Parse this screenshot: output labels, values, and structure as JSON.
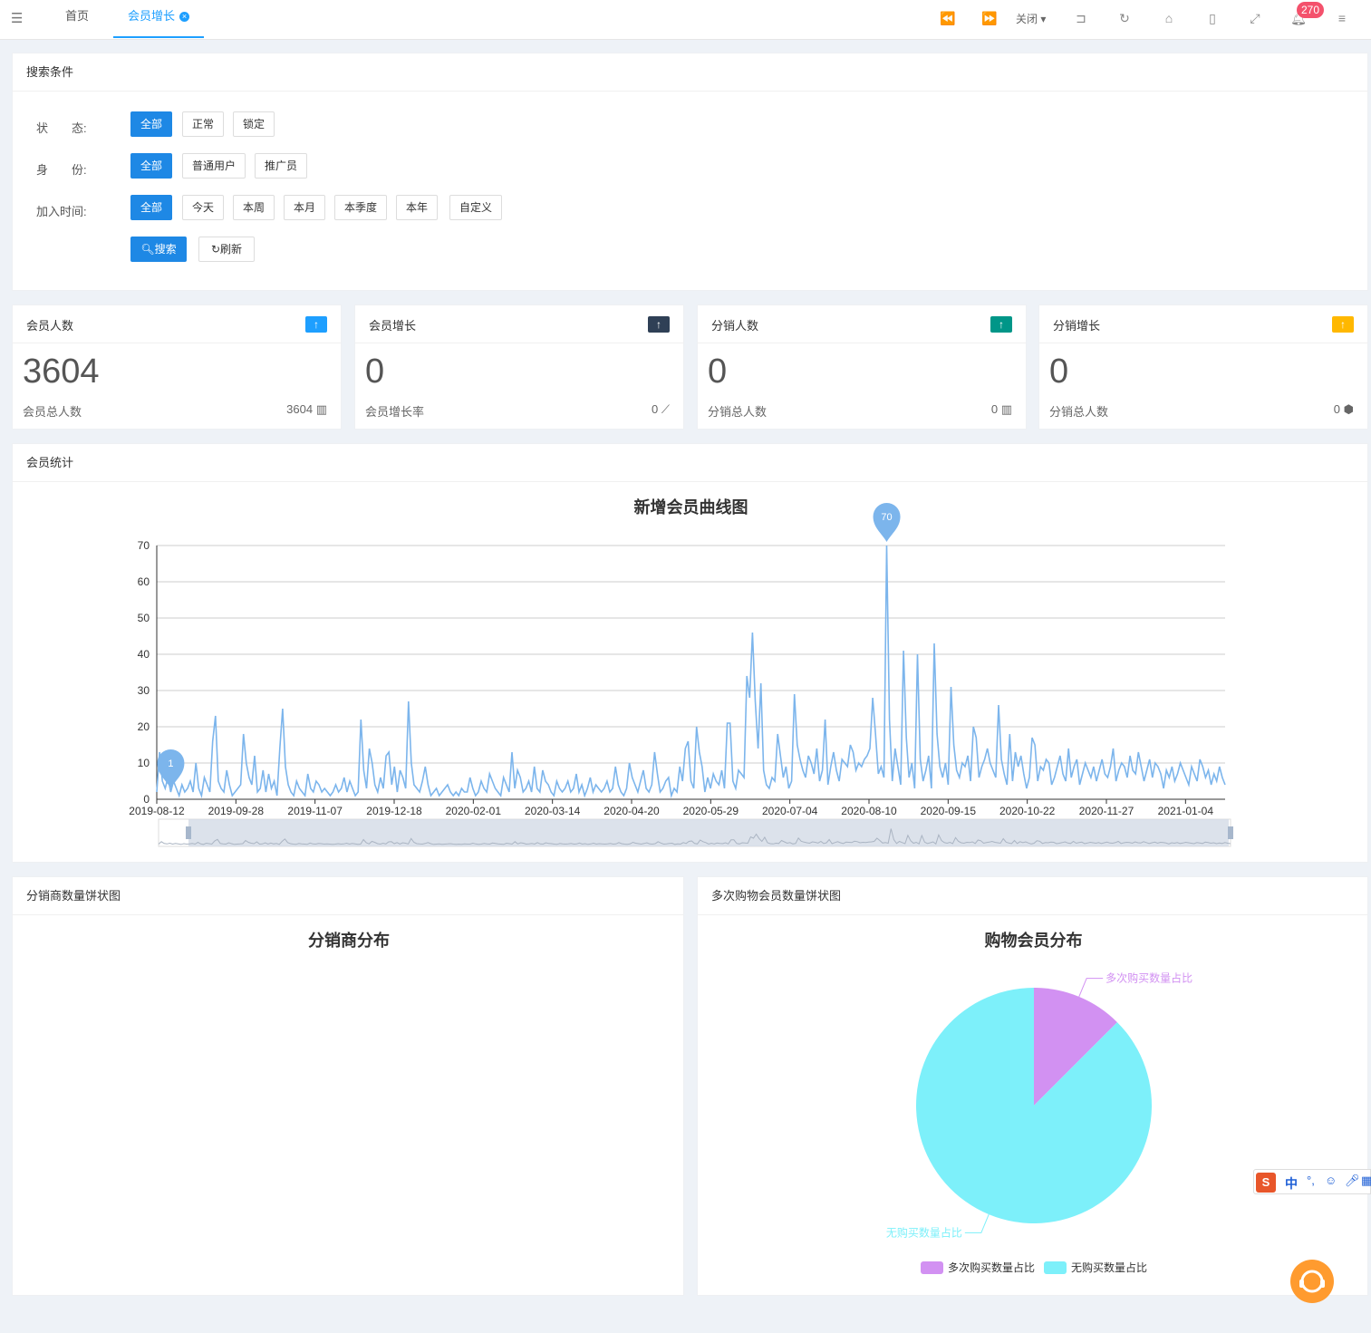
{
  "topbar": {
    "tabs": [
      {
        "label": "首页"
      },
      {
        "label": "会员增长"
      }
    ],
    "close_label": "关闭",
    "notification_count": "270"
  },
  "search": {
    "title": "搜索条件",
    "status_label": "状　　态:",
    "status_options": [
      "全部",
      "正常",
      "锁定"
    ],
    "identity_label": "身　　份:",
    "identity_options": [
      "全部",
      "普通用户",
      "推广员"
    ],
    "join_label": "加入时间:",
    "join_options": [
      "全部",
      "今天",
      "本周",
      "本月",
      "本季度",
      "本年",
      "自定义"
    ],
    "search_button": "搜索",
    "refresh_button": "刷新"
  },
  "stats": [
    {
      "title": "会员人数",
      "value": "3604",
      "sub": "会员总人数",
      "right": "3604",
      "color": "#1e9fff"
    },
    {
      "title": "会员增长",
      "value": "0",
      "sub": "会员增长率",
      "right": "0",
      "color": "#2f4056"
    },
    {
      "title": "分销人数",
      "value": "0",
      "sub": "分销总人数",
      "right": "0",
      "color": "#009688"
    },
    {
      "title": "分销增长",
      "value": "0",
      "sub": "分销总人数",
      "right": "0",
      "color": "#ffb800"
    }
  ],
  "member_stats": {
    "title": "会员统计"
  },
  "chart_data": [
    {
      "type": "line",
      "title": "新增会员曲线图",
      "x_ticks": [
        "2019-08-12",
        "2019-09-28",
        "2019-11-07",
        "2019-12-18",
        "2020-02-01",
        "2020-03-14",
        "2020-04-20",
        "2020-05-29",
        "2020-07-04",
        "2020-08-10",
        "2020-09-15",
        "2020-10-22",
        "2020-11-27",
        "2021-01-04"
      ],
      "y_ticks": [
        0,
        10,
        20,
        30,
        40,
        50,
        60,
        70
      ],
      "ylim": [
        0,
        70
      ],
      "max_marker": {
        "label": "70",
        "value": 70
      },
      "min_marker": {
        "label": "1",
        "value": 1
      },
      "series": [
        {
          "color": "#7cb5ec",
          "values": [
            2,
            13,
            5,
            3,
            6,
            2,
            5,
            3,
            1,
            4,
            2,
            3,
            5,
            2,
            10,
            3,
            1,
            6,
            4,
            2,
            16,
            23,
            5,
            3,
            2,
            8,
            4,
            1,
            2,
            3,
            4,
            18,
            10,
            6,
            4,
            12,
            2,
            3,
            8,
            2,
            7,
            3,
            5,
            1,
            14,
            25,
            9,
            4,
            2,
            1,
            5,
            3,
            2,
            1,
            7,
            3,
            2,
            5,
            4,
            2,
            3,
            2,
            1,
            2,
            4,
            2,
            3,
            6,
            2,
            5,
            3,
            1,
            2,
            22,
            8,
            3,
            14,
            10,
            4,
            2,
            6,
            3,
            12,
            13,
            4,
            9,
            2,
            8,
            6,
            3,
            27,
            10,
            4,
            3,
            2,
            5,
            9,
            4,
            1,
            2,
            3,
            1,
            2,
            3,
            4,
            2,
            1,
            2,
            1,
            3,
            2,
            2,
            6,
            3,
            1,
            2,
            5,
            3,
            2,
            7,
            5,
            3,
            2,
            1,
            6,
            4,
            2,
            13,
            3,
            8,
            6,
            2,
            3,
            5,
            2,
            9,
            3,
            2,
            8,
            5,
            4,
            2,
            1,
            5,
            3,
            2,
            3,
            5,
            2,
            3,
            7,
            2,
            4,
            1,
            3,
            6,
            2,
            4,
            3,
            2,
            3,
            5,
            2,
            3,
            9,
            4,
            2,
            1,
            3,
            10,
            6,
            4,
            2,
            5,
            8,
            3,
            2,
            4,
            13,
            7,
            2,
            3,
            5,
            6,
            1,
            3,
            2,
            9,
            5,
            14,
            16,
            5,
            3,
            20,
            13,
            9,
            2,
            6,
            3,
            7,
            5,
            4,
            8,
            3,
            21,
            21,
            5,
            3,
            8,
            7,
            6,
            34,
            28,
            46,
            27,
            14,
            32,
            8,
            4,
            3,
            6,
            5,
            18,
            12,
            6,
            9,
            3,
            5,
            29,
            15,
            11,
            8,
            6,
            12,
            10,
            7,
            14,
            5,
            8,
            22,
            4,
            9,
            13,
            8,
            5,
            11,
            10,
            9,
            15,
            13,
            8,
            10,
            9,
            11,
            12,
            14,
            28,
            18,
            7,
            9,
            6,
            70,
            22,
            5,
            14,
            9,
            4,
            41,
            17,
            6,
            10,
            3,
            40,
            11,
            5,
            8,
            12,
            3,
            43,
            18,
            9,
            6,
            10,
            4,
            31,
            15,
            8,
            6,
            10,
            9,
            12,
            5,
            20,
            17,
            6,
            9,
            11,
            14,
            10,
            8,
            6,
            26,
            11,
            7,
            4,
            18,
            5,
            13,
            9,
            12,
            7,
            3,
            6,
            17,
            15,
            5,
            9,
            8,
            11,
            10,
            4,
            6,
            9,
            12,
            7,
            5,
            14,
            6,
            9,
            11,
            4,
            7,
            10,
            8,
            6,
            9,
            5,
            8,
            11,
            7,
            6,
            9,
            14,
            5,
            8,
            10,
            9,
            6,
            12,
            8,
            7,
            13,
            9,
            5,
            8,
            11,
            6,
            10,
            9,
            7,
            3,
            8,
            6,
            9,
            5,
            7,
            10,
            8,
            6,
            4,
            9,
            7,
            5,
            11,
            9,
            6,
            8,
            4,
            7,
            5,
            9,
            6,
            4
          ]
        }
      ]
    },
    {
      "type": "pie",
      "title": "分销商分布",
      "values": []
    },
    {
      "type": "pie",
      "title": "购物会员分布",
      "categories": [
        "多次购买数量占比",
        "无购买数量占比"
      ],
      "values": [
        12.5,
        87.5
      ],
      "colors": [
        "#d291f2",
        "#7df0fa"
      ],
      "legend": "bottom"
    }
  ],
  "panels": {
    "distributor_pie": "分销商数量饼状图",
    "shopping_pie": "多次购物会员数量饼状图"
  },
  "ime": {
    "lang": "中"
  }
}
